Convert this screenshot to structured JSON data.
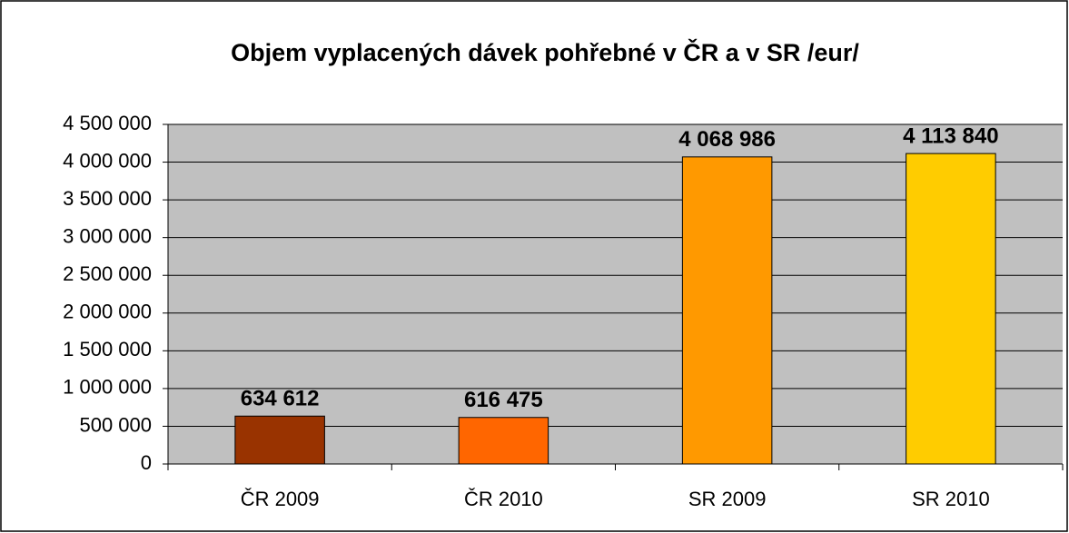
{
  "chart_data": {
    "type": "bar",
    "title": "Objem vyplacených dávek pohřebné v ČR a v SR /eur/",
    "categories": [
      "ČR 2009",
      "ČR 2010",
      "SR 2009",
      "SR 2010"
    ],
    "values": [
      634612,
      616475,
      4068986,
      4113840
    ],
    "value_labels": [
      "634 612",
      "616 475",
      "4 068 986",
      "4 113 840"
    ],
    "colors": [
      "#993300",
      "#ff6600",
      "#ff9900",
      "#ffcc00"
    ],
    "ylim": [
      0,
      4500000
    ],
    "yticks": [
      0,
      {
        "value": 500000,
        "label": "500 000"
      },
      {
        "value": 1000000,
        "label": "1 000 000"
      },
      {
        "value": 1500000,
        "label": "1 500 000"
      },
      {
        "value": 2000000,
        "label": "2 000 000"
      },
      {
        "value": 2500000,
        "label": "2 500 000"
      },
      {
        "value": 3000000,
        "label": "3 000 000"
      },
      {
        "value": 3500000,
        "label": "3 500 000"
      },
      {
        "value": 4000000,
        "label": "4 000 000"
      },
      {
        "value": 4500000,
        "label": "4 500 000"
      }
    ],
    "grid": true
  }
}
